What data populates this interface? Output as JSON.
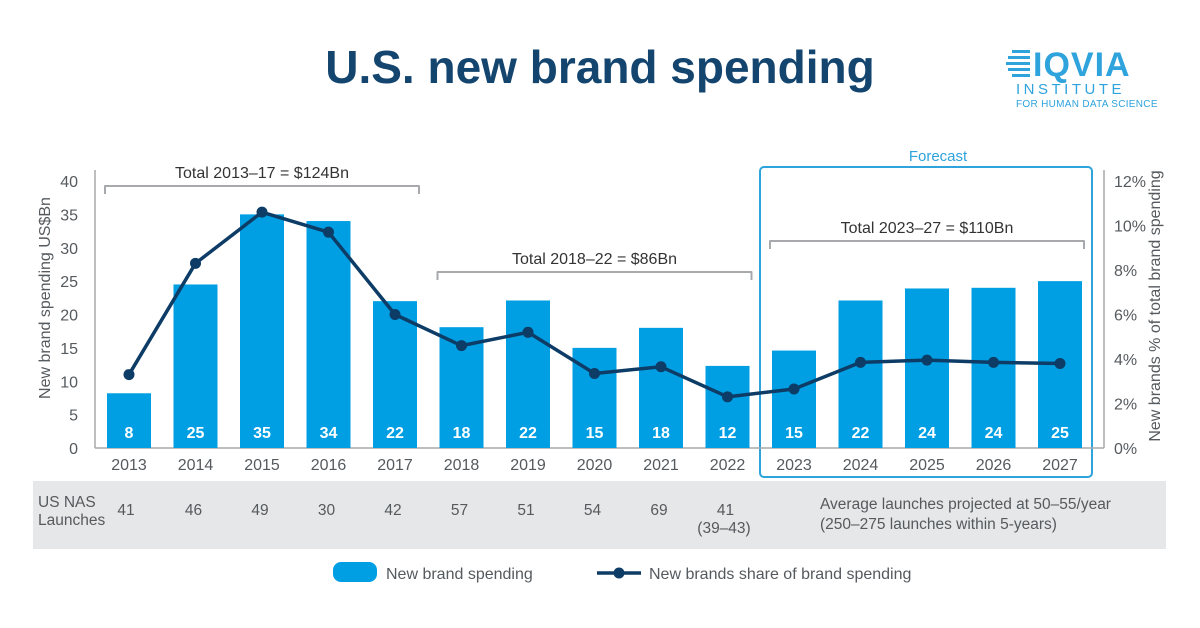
{
  "title": "U.S. new brand spending",
  "logo": {
    "name": "IQVIA",
    "subtitle": "INSTITUTE",
    "tagline": "FOR HUMAN DATA SCIENCE"
  },
  "colors": {
    "bar": "#009fe3",
    "line": "#0d3c66",
    "title": "#13456f",
    "accent": "#2ea3dc",
    "bracket": "#a7a9ac",
    "axis": "#a7a9ac",
    "band": "#e6e7e8"
  },
  "forecast_label": "Forecast",
  "chart_data": {
    "type": "bar",
    "categories": [
      "2013",
      "2014",
      "2015",
      "2016",
      "2017",
      "2018",
      "2019",
      "2020",
      "2021",
      "2022",
      "2023",
      "2024",
      "2025",
      "2026",
      "2027"
    ],
    "series": [
      {
        "name": "New brand spending",
        "kind": "bar",
        "axis": "left",
        "values": [
          8.2,
          24.5,
          35,
          34,
          22,
          18.1,
          22.1,
          15,
          18,
          12.3,
          14.6,
          22.1,
          23.9,
          24,
          25
        ]
      },
      {
        "name": "New brands share of brand spending",
        "kind": "line",
        "axis": "right",
        "values": [
          3.3,
          8.3,
          10.6,
          9.7,
          6.0,
          4.6,
          5.2,
          3.35,
          3.65,
          2.3,
          2.65,
          3.85,
          3.95,
          3.85,
          3.8
        ]
      }
    ],
    "bar_labels": [
      "8",
      "25",
      "35",
      "34",
      "22",
      "18",
      "22",
      "15",
      "18",
      "12",
      "15",
      "22",
      "24",
      "24",
      "25"
    ],
    "ylabel": "New brand spending US$Bn",
    "ylim": [
      0,
      40
    ],
    "yticks": [
      0,
      5,
      10,
      15,
      20,
      25,
      30,
      35,
      40
    ],
    "y2label": "New brands % of total brand spending",
    "y2lim": [
      0,
      12
    ],
    "y2ticks": [
      "0%",
      "2%",
      "4%",
      "6%",
      "8%",
      "10%",
      "12%"
    ],
    "forecast_start": "2023",
    "totals": [
      {
        "label": "Total 2013–17 = $124Bn",
        "from": "2013",
        "to": "2017"
      },
      {
        "label": "Total 2018–22 = $86Bn",
        "from": "2018",
        "to": "2022"
      },
      {
        "label": "Total 2023–27 = $110Bn",
        "from": "2023",
        "to": "2027"
      }
    ],
    "legend": [
      "New brand spending",
      "New brands share of brand spending"
    ]
  },
  "launches": {
    "label_line1": "US  NAS",
    "label_line2": "Launches",
    "values": [
      "41",
      "46",
      "49",
      "30",
      "42",
      "57",
      "51",
      "54",
      "69",
      "41"
    ],
    "range_note": "(39–43)",
    "projection_line1": "Average launches projected at 50–55/year",
    "projection_line2": "(250–275 launches within 5-years)"
  }
}
